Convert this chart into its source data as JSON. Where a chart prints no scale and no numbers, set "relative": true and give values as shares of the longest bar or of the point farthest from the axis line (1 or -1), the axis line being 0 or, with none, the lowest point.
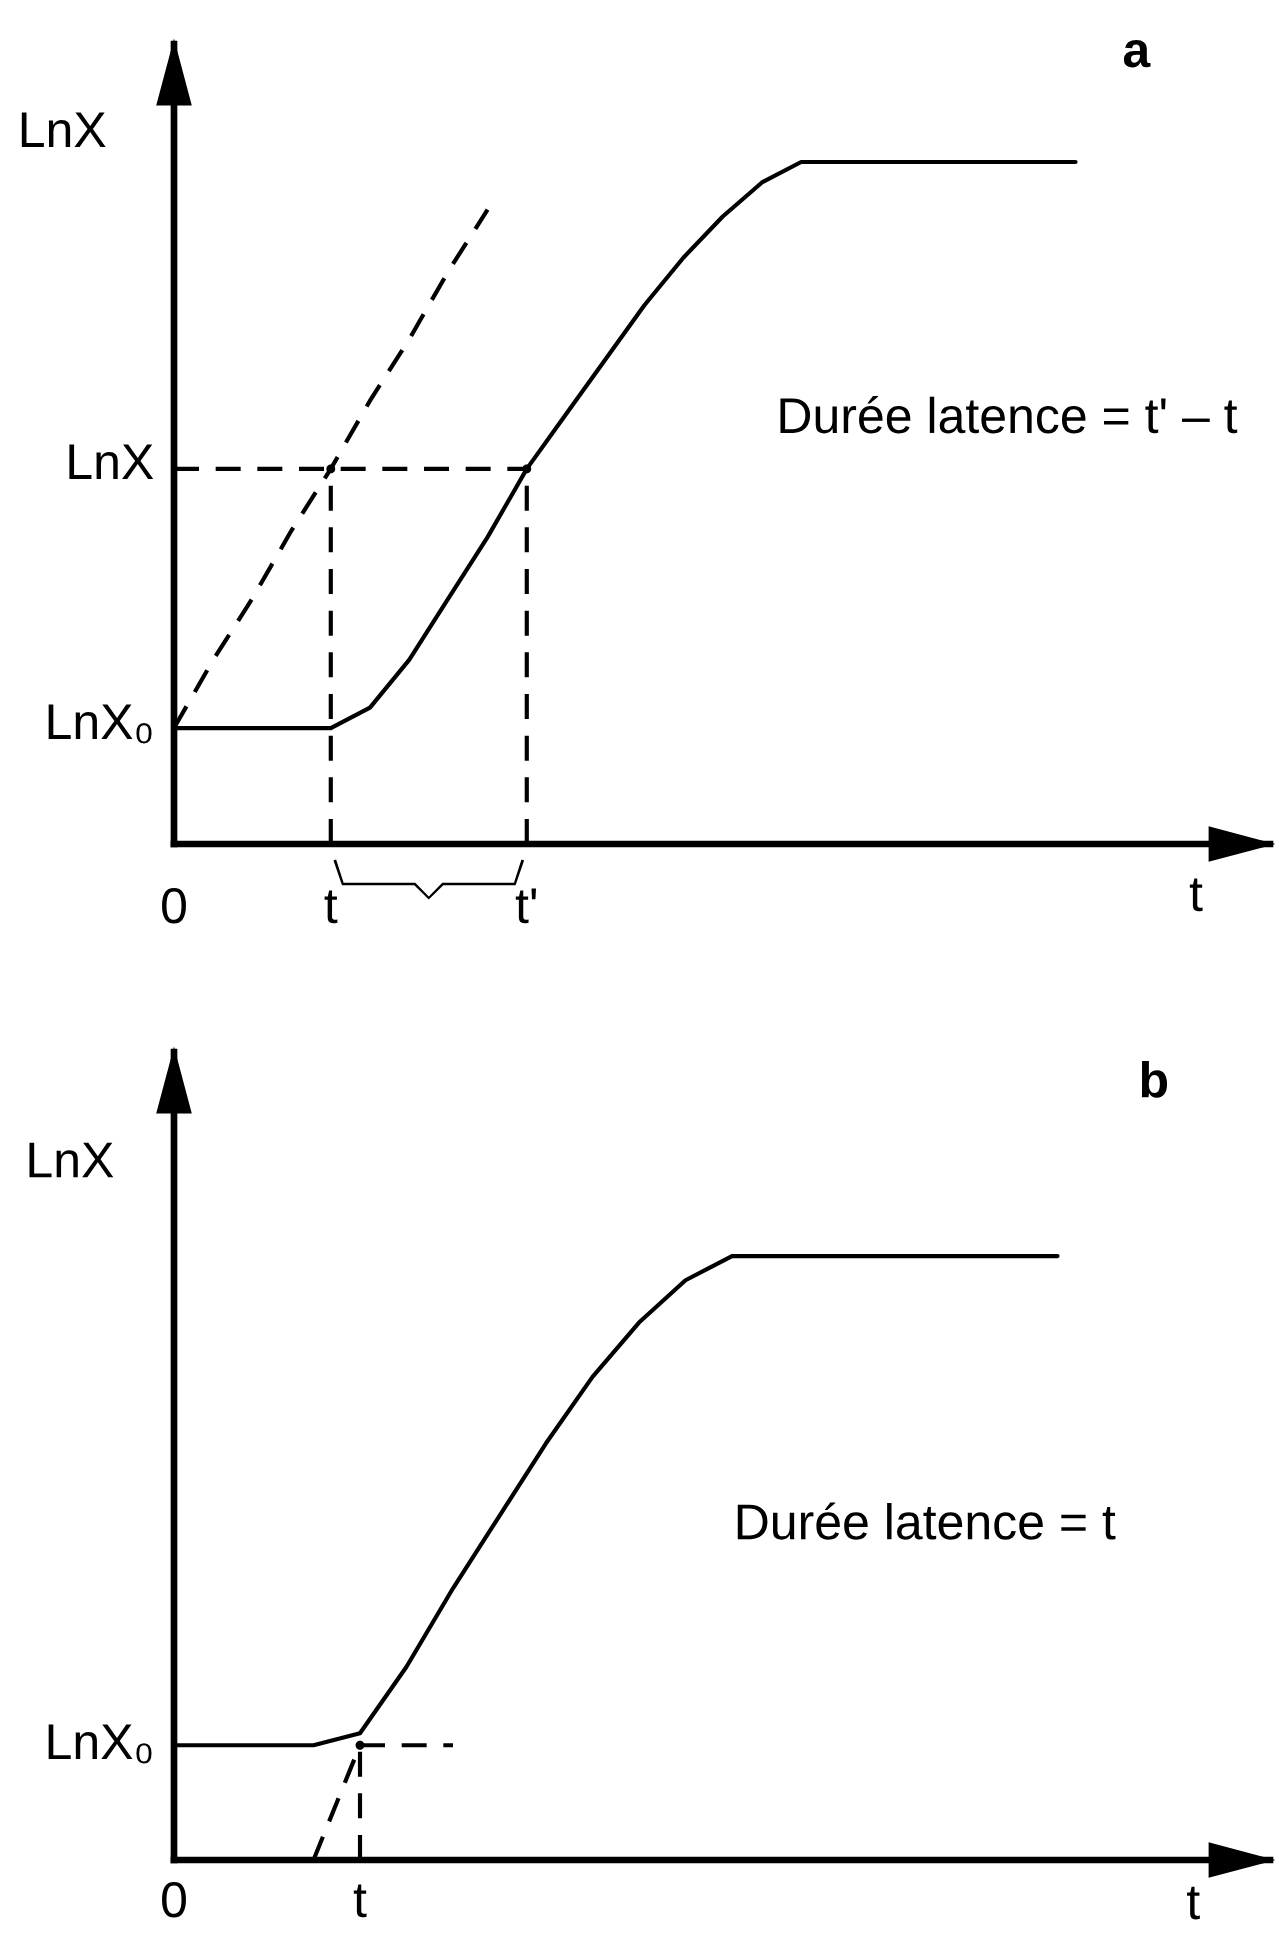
{
  "chart_data": [
    {
      "type": "line",
      "xlabel": "t",
      "ylabel": "LnX",
      "relative": true,
      "categories": [
        "0",
        null,
        null,
        null,
        "t",
        null,
        null,
        null,
        null,
        "t'",
        null,
        null,
        null,
        null,
        null,
        null,
        null,
        null,
        null,
        null,
        null,
        null,
        null,
        null
      ],
      "annotations": [
        "a",
        "LnX₀",
        "LnX",
        "Durée latence = t' – t"
      ],
      "series": [
        {
          "color": "#000000",
          "line_style": "solid",
          "values": [
            0.17,
            0.17,
            0.17,
            0.17,
            0.17,
            0.2,
            0.27,
            0.36,
            0.45,
            0.55,
            0.63,
            0.71,
            0.79,
            0.86,
            0.92,
            0.97,
            1,
            1,
            1,
            1,
            1,
            1,
            1,
            1
          ]
        },
        {
          "color": "#000000",
          "line_style": "dashed",
          "values": [
            0.17,
            0.27,
            0.36,
            0.46,
            0.55,
            0.65,
            0.74,
            0.84,
            0.93,
            null,
            null,
            null,
            null,
            null,
            null,
            null,
            null,
            null,
            null,
            null,
            null,
            null,
            null,
            null
          ]
        },
        {
          "color": "#000000",
          "line_style": "dashed",
          "values": [
            0.55,
            0.55,
            0.55,
            0.55,
            0.55,
            0.55,
            0.55,
            0.55,
            0.55,
            0.55,
            null,
            null,
            null,
            null,
            null,
            null,
            null,
            null,
            null,
            null,
            null,
            null,
            null,
            null
          ]
        },
        {
          "type": "lollipop",
          "color": "#000000",
          "line_style": "dashed",
          "marker": "circle",
          "values": [
            null,
            null,
            null,
            null,
            0.55,
            null,
            null,
            null,
            null,
            0.55,
            null,
            null,
            null,
            null,
            null,
            null,
            null,
            null,
            null,
            null,
            null,
            null,
            null,
            null
          ]
        }
      ]
    },
    {
      "type": "line",
      "xlabel": "t",
      "ylabel": "LnX",
      "relative": true,
      "categories": [
        "0",
        null,
        null,
        null,
        "t",
        null,
        null,
        null,
        null,
        null,
        null,
        null,
        null,
        null,
        null,
        null,
        null,
        null,
        null,
        null
      ],
      "annotations": [
        "b",
        "LnX₀",
        "Durée latence = t"
      ],
      "series": [
        {
          "color": "#000000",
          "line_style": "solid",
          "values": [
            0.19,
            0.19,
            0.19,
            0.19,
            0.21,
            0.32,
            0.45,
            0.57,
            0.69,
            0.8,
            0.89,
            0.96,
            1,
            1,
            1,
            1,
            1,
            1,
            1,
            1
          ]
        },
        {
          "color": "#000000",
          "line_style": "dashed",
          "values": [
            null,
            null,
            null,
            0,
            0.19,
            null,
            null,
            null,
            null,
            null,
            null,
            null,
            null,
            null,
            null,
            null,
            null,
            null,
            null,
            null
          ]
        },
        {
          "color": "#000000",
          "line_style": "dashed",
          "values": [
            null,
            null,
            null,
            null,
            0.19,
            0.19,
            0.19,
            null,
            null,
            null,
            null,
            null,
            null,
            null,
            null,
            null,
            null,
            null,
            null,
            null
          ]
        },
        {
          "type": "lollipop",
          "color": "#000000",
          "line_style": "dashed",
          "marker": "circle",
          "values": [
            null,
            null,
            null,
            null,
            0.19,
            null,
            null,
            null,
            null,
            null,
            null,
            null,
            null,
            null,
            null,
            null,
            null,
            null,
            null,
            null
          ]
        }
      ]
    }
  ]
}
